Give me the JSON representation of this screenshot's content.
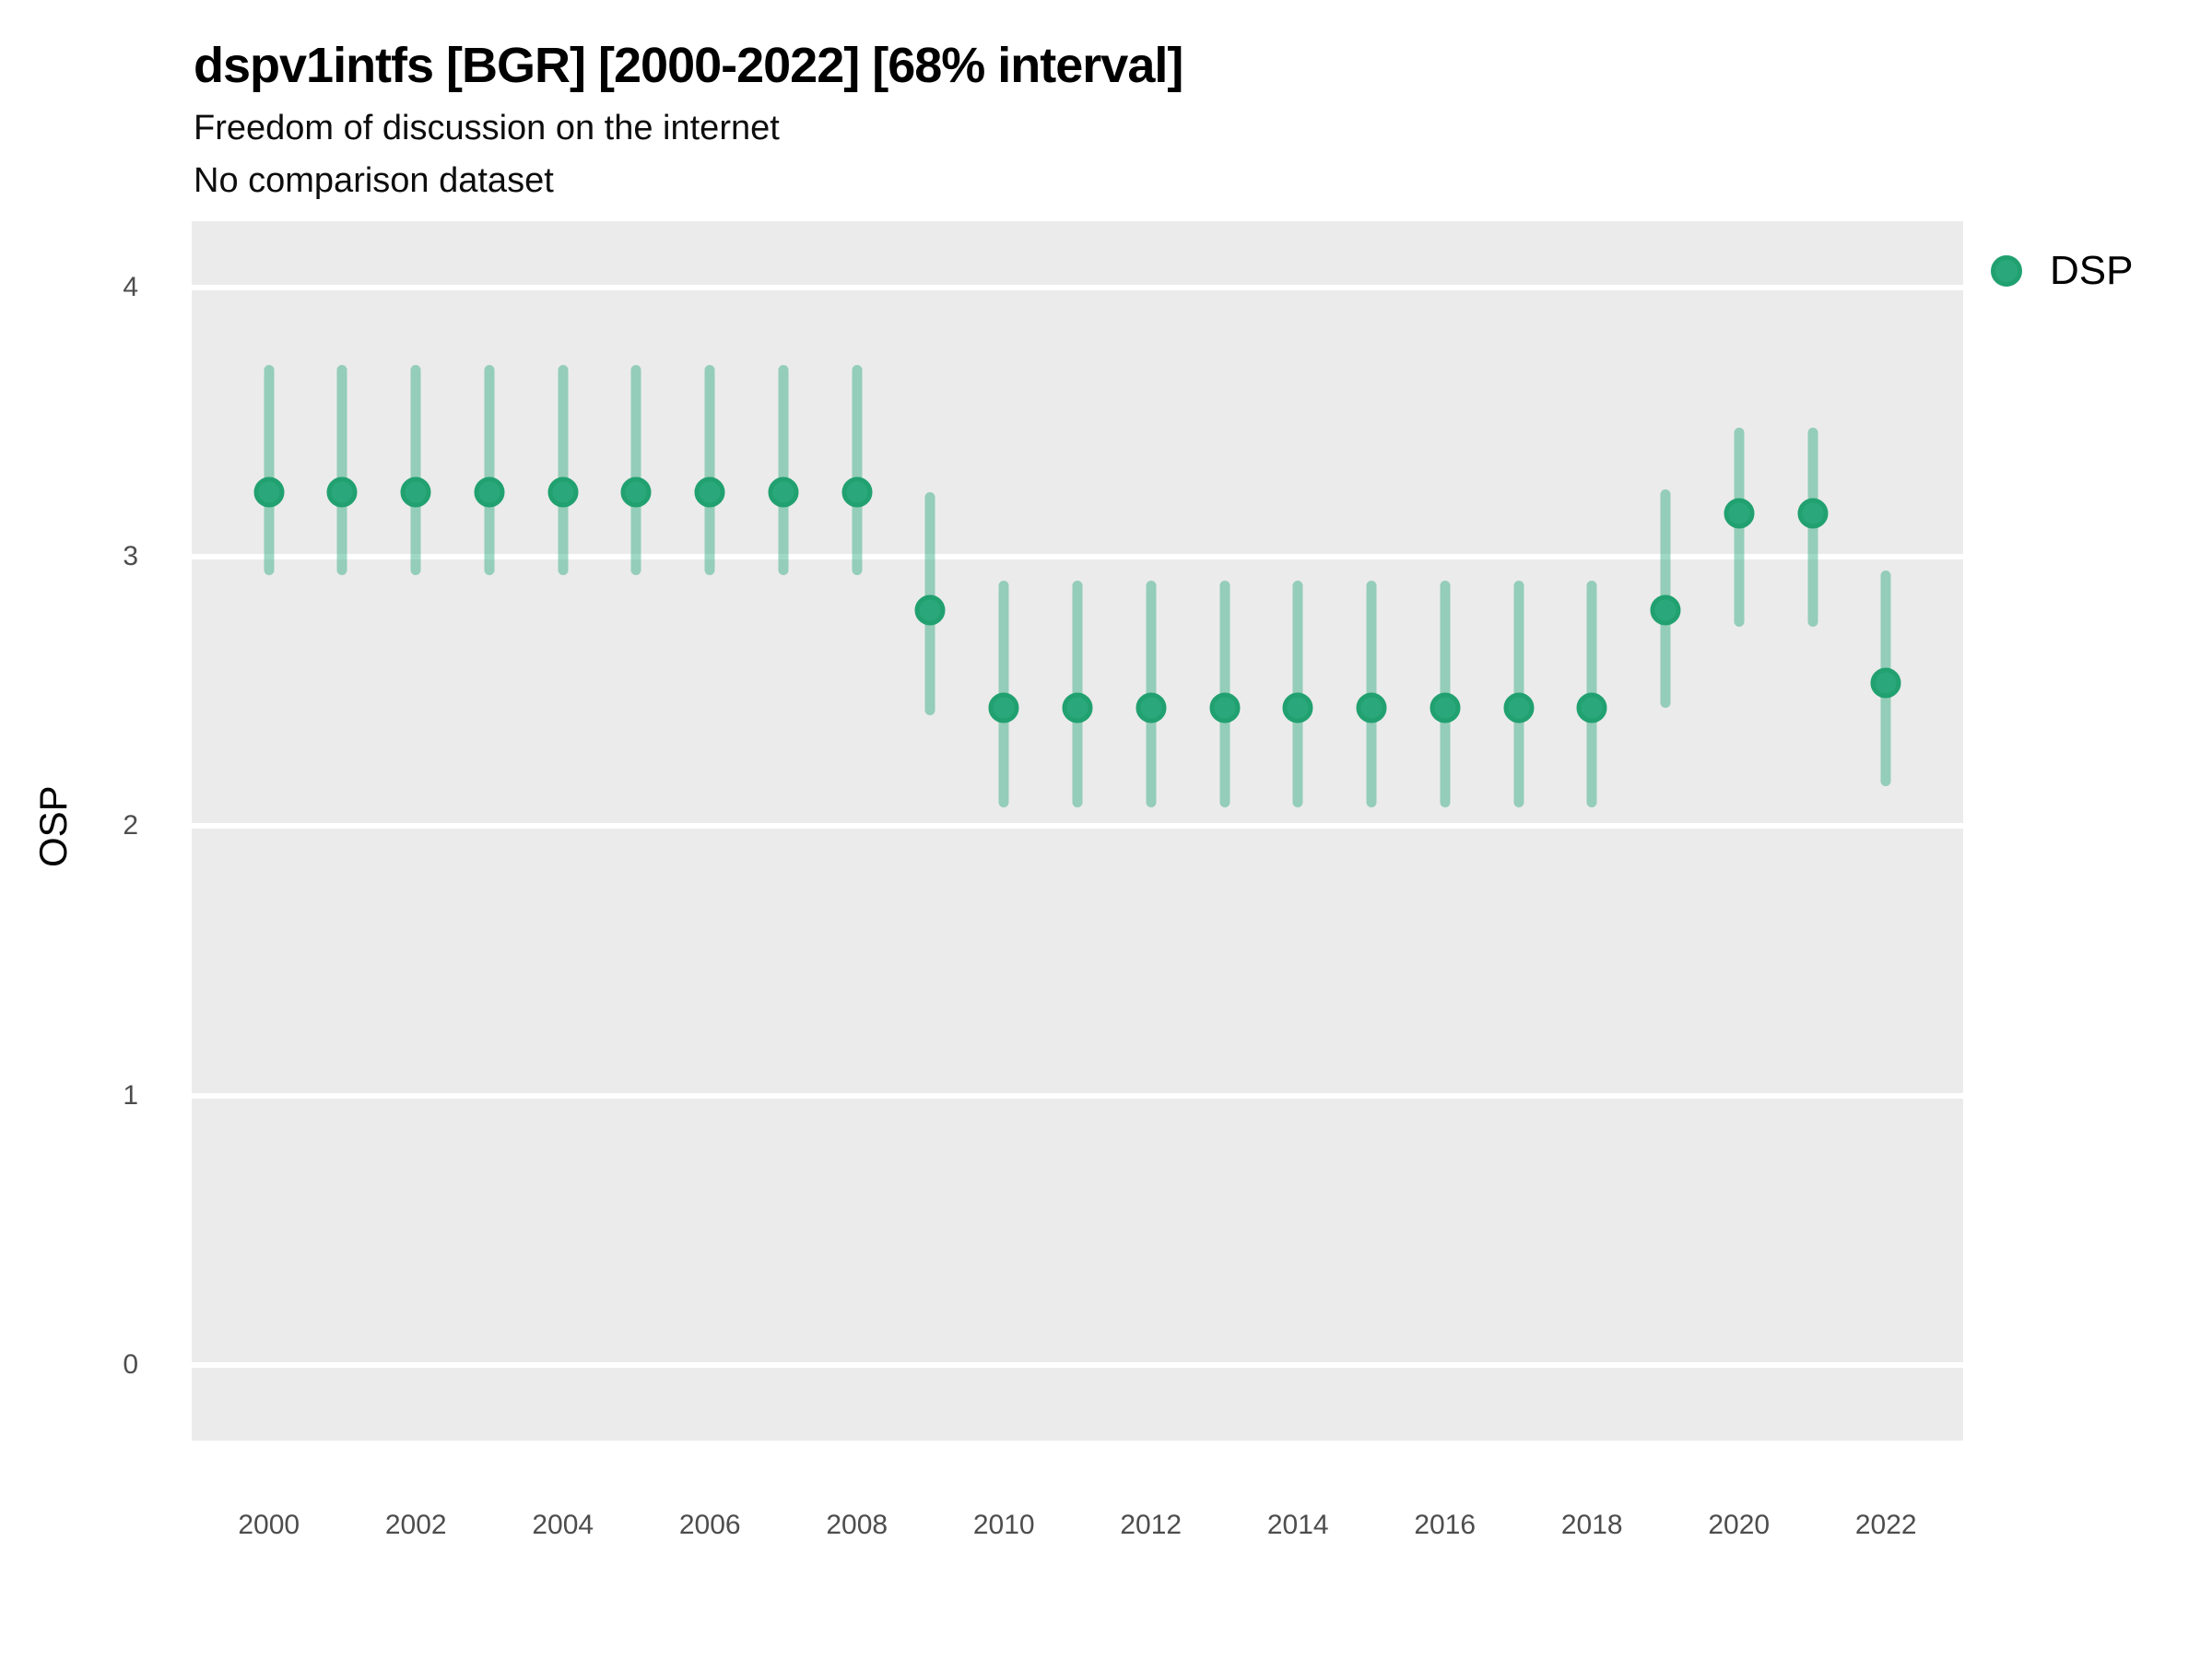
{
  "header": {
    "title": "dspv1intfs [BGR] [2000-2022] [68% interval]",
    "subtitle": "Freedom of discussion on the internet",
    "note": "No comparison dataset"
  },
  "legend": {
    "items": [
      {
        "label": "DSP",
        "color": "#2aa87c"
      }
    ]
  },
  "axes": {
    "y_title": "OSP",
    "y_tick_labels": [
      "0",
      "1",
      "2",
      "3",
      "4"
    ],
    "x_tick_labels": [
      "2000",
      "2002",
      "2004",
      "2006",
      "2008",
      "2010",
      "2012",
      "2014",
      "2016",
      "2018",
      "2020",
      "2022"
    ]
  },
  "chart_data": {
    "type": "scatter",
    "title": "dspv1intfs [BGR] [2000-2022] [68% interval]",
    "subtitle": "Freedom of discussion on the internet",
    "note": "No comparison dataset",
    "xlabel": "",
    "ylabel": "OSP",
    "interval_level": "68%",
    "grid": "major-horizontal-only",
    "legend_position": "right-top",
    "x_ticks": [
      2000,
      2002,
      2004,
      2006,
      2008,
      2010,
      2012,
      2014,
      2016,
      2018,
      2020,
      2022
    ],
    "y_ticks": [
      0,
      1,
      2,
      3,
      4
    ],
    "x_domain": [
      1998.95,
      2023.05
    ],
    "y_domain": [
      -0.28,
      4.245
    ],
    "series": [
      {
        "name": "DSP",
        "points": [
          {
            "year": 2000,
            "value": 3.24,
            "lo": 2.93,
            "hi": 3.71
          },
          {
            "year": 2001,
            "value": 3.24,
            "lo": 2.93,
            "hi": 3.71
          },
          {
            "year": 2002,
            "value": 3.24,
            "lo": 2.93,
            "hi": 3.71
          },
          {
            "year": 2003,
            "value": 3.24,
            "lo": 2.93,
            "hi": 3.71
          },
          {
            "year": 2004,
            "value": 3.24,
            "lo": 2.93,
            "hi": 3.71
          },
          {
            "year": 2005,
            "value": 3.24,
            "lo": 2.93,
            "hi": 3.71
          },
          {
            "year": 2006,
            "value": 3.24,
            "lo": 2.93,
            "hi": 3.71
          },
          {
            "year": 2007,
            "value": 3.24,
            "lo": 2.93,
            "hi": 3.71
          },
          {
            "year": 2008,
            "value": 3.24,
            "lo": 2.93,
            "hi": 3.71
          },
          {
            "year": 2009,
            "value": 2.8,
            "lo": 2.41,
            "hi": 3.24
          },
          {
            "year": 2010,
            "value": 2.44,
            "lo": 2.07,
            "hi": 2.91
          },
          {
            "year": 2011,
            "value": 2.44,
            "lo": 2.07,
            "hi": 2.91
          },
          {
            "year": 2012,
            "value": 2.44,
            "lo": 2.07,
            "hi": 2.91
          },
          {
            "year": 2013,
            "value": 2.44,
            "lo": 2.07,
            "hi": 2.91
          },
          {
            "year": 2014,
            "value": 2.44,
            "lo": 2.07,
            "hi": 2.91
          },
          {
            "year": 2015,
            "value": 2.44,
            "lo": 2.07,
            "hi": 2.91
          },
          {
            "year": 2016,
            "value": 2.44,
            "lo": 2.07,
            "hi": 2.91
          },
          {
            "year": 2017,
            "value": 2.44,
            "lo": 2.07,
            "hi": 2.91
          },
          {
            "year": 2018,
            "value": 2.44,
            "lo": 2.07,
            "hi": 2.91
          },
          {
            "year": 2019,
            "value": 2.8,
            "lo": 2.44,
            "hi": 3.25
          },
          {
            "year": 2020,
            "value": 3.16,
            "lo": 2.74,
            "hi": 3.48
          },
          {
            "year": 2021,
            "value": 3.16,
            "lo": 2.74,
            "hi": 3.48
          },
          {
            "year": 2022,
            "value": 2.53,
            "lo": 2.15,
            "hi": 2.95
          }
        ]
      }
    ],
    "colors": {
      "point_fill": "#2aa87c",
      "point_ring": "#21a070",
      "interval_bar": "rgba(42, 168, 124, 0.45)",
      "panel_background": "#ebebeb",
      "gridline": "#ffffff",
      "axis_text": "#4d4d4d"
    }
  }
}
